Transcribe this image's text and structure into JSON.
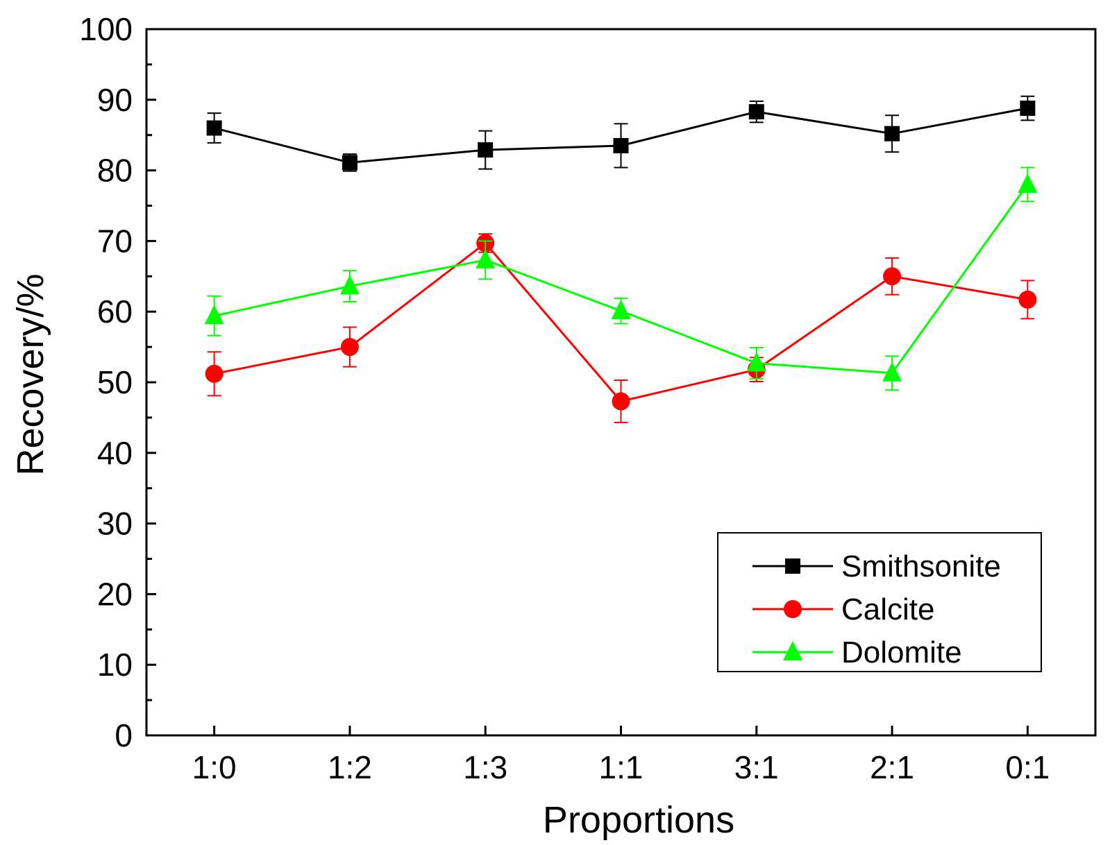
{
  "chart_data": {
    "type": "line",
    "title": "",
    "xlabel": "Proportions",
    "ylabel": "Recovery/%",
    "categories": [
      "1:0",
      "1:2",
      "1:3",
      "1:1",
      "3:1",
      "2:1",
      "0:1"
    ],
    "ylim": [
      0,
      100
    ],
    "yticks": [
      0,
      10,
      20,
      30,
      40,
      50,
      60,
      70,
      80,
      90,
      100
    ],
    "grid": false,
    "legend_position": "bottom-right",
    "series": [
      {
        "name": "Smithsonite",
        "color": "#000000",
        "marker": "square",
        "values": [
          86.0,
          81.1,
          82.9,
          83.5,
          88.3,
          85.2,
          88.8
        ],
        "errors": [
          2.1,
          1.2,
          2.7,
          3.1,
          1.5,
          2.6,
          1.7
        ]
      },
      {
        "name": "Calcite",
        "color": "#ff0000",
        "marker": "circle",
        "values": [
          51.2,
          55.0,
          69.7,
          47.3,
          51.8,
          65.0,
          61.7
        ],
        "errors": [
          3.1,
          2.8,
          1.3,
          3.0,
          1.7,
          2.6,
          2.7
        ]
      },
      {
        "name": "Dolomite",
        "color": "#00ff00",
        "marker": "triangle",
        "values": [
          59.4,
          63.6,
          67.3,
          60.1,
          52.7,
          51.3,
          78.0
        ],
        "errors": [
          2.8,
          2.2,
          2.7,
          1.8,
          2.2,
          2.4,
          2.4
        ]
      }
    ]
  }
}
